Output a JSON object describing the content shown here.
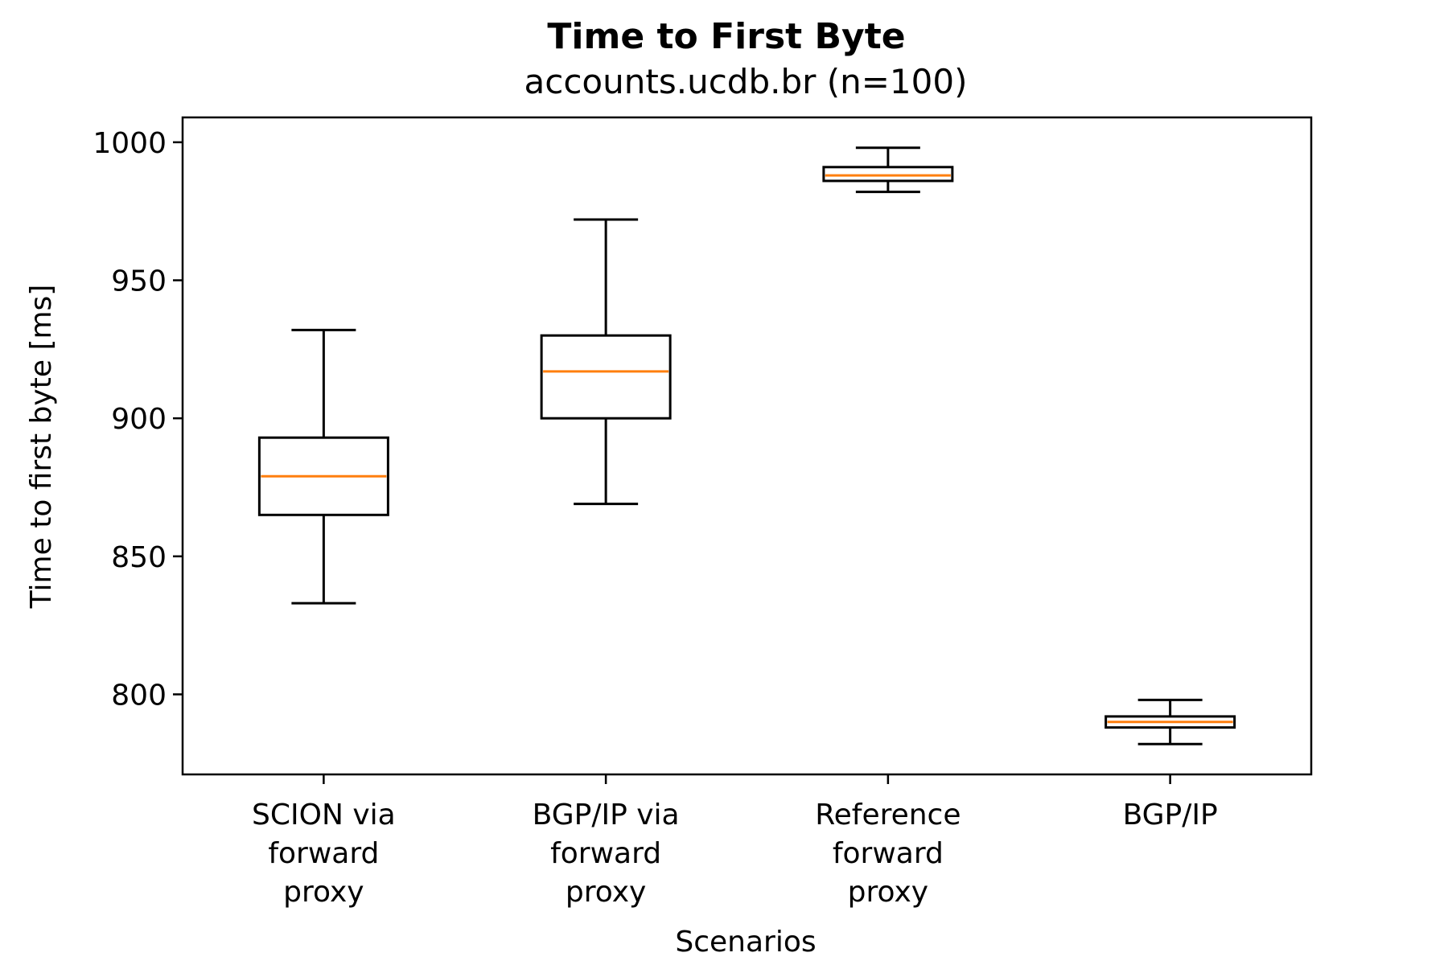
{
  "chart_data": {
    "type": "box",
    "title": "Time to First Byte",
    "subtitle": "accounts.ucdb.br (n=100)",
    "xlabel": "Scenarios",
    "ylabel": "Time to first byte [ms]",
    "ylim": [
      771,
      1009
    ],
    "yticks": [
      800,
      850,
      900,
      950,
      1000
    ],
    "ytick_labels": [
      "800",
      "850",
      "900",
      "950",
      "1000"
    ],
    "categories": [
      [
        "SCION via",
        "forward",
        "proxy"
      ],
      [
        "BGP/IP via",
        "forward",
        "proxy"
      ],
      [
        "Reference",
        "forward",
        "proxy"
      ],
      [
        "BGP/IP"
      ]
    ],
    "boxes": [
      {
        "whisker_low": 833,
        "q1": 865,
        "median": 879,
        "q3": 893,
        "whisker_high": 932
      },
      {
        "whisker_low": 869,
        "q1": 900,
        "median": 917,
        "q3": 930,
        "whisker_high": 972
      },
      {
        "whisker_low": 982,
        "q1": 986,
        "median": 988,
        "q3": 991,
        "whisker_high": 998
      },
      {
        "whisker_low": 782,
        "q1": 788,
        "median": 790,
        "q3": 792,
        "whisker_high": 798
      }
    ],
    "grid": false,
    "colors": {
      "box": "#000000",
      "median": "#ff7f0e"
    }
  }
}
